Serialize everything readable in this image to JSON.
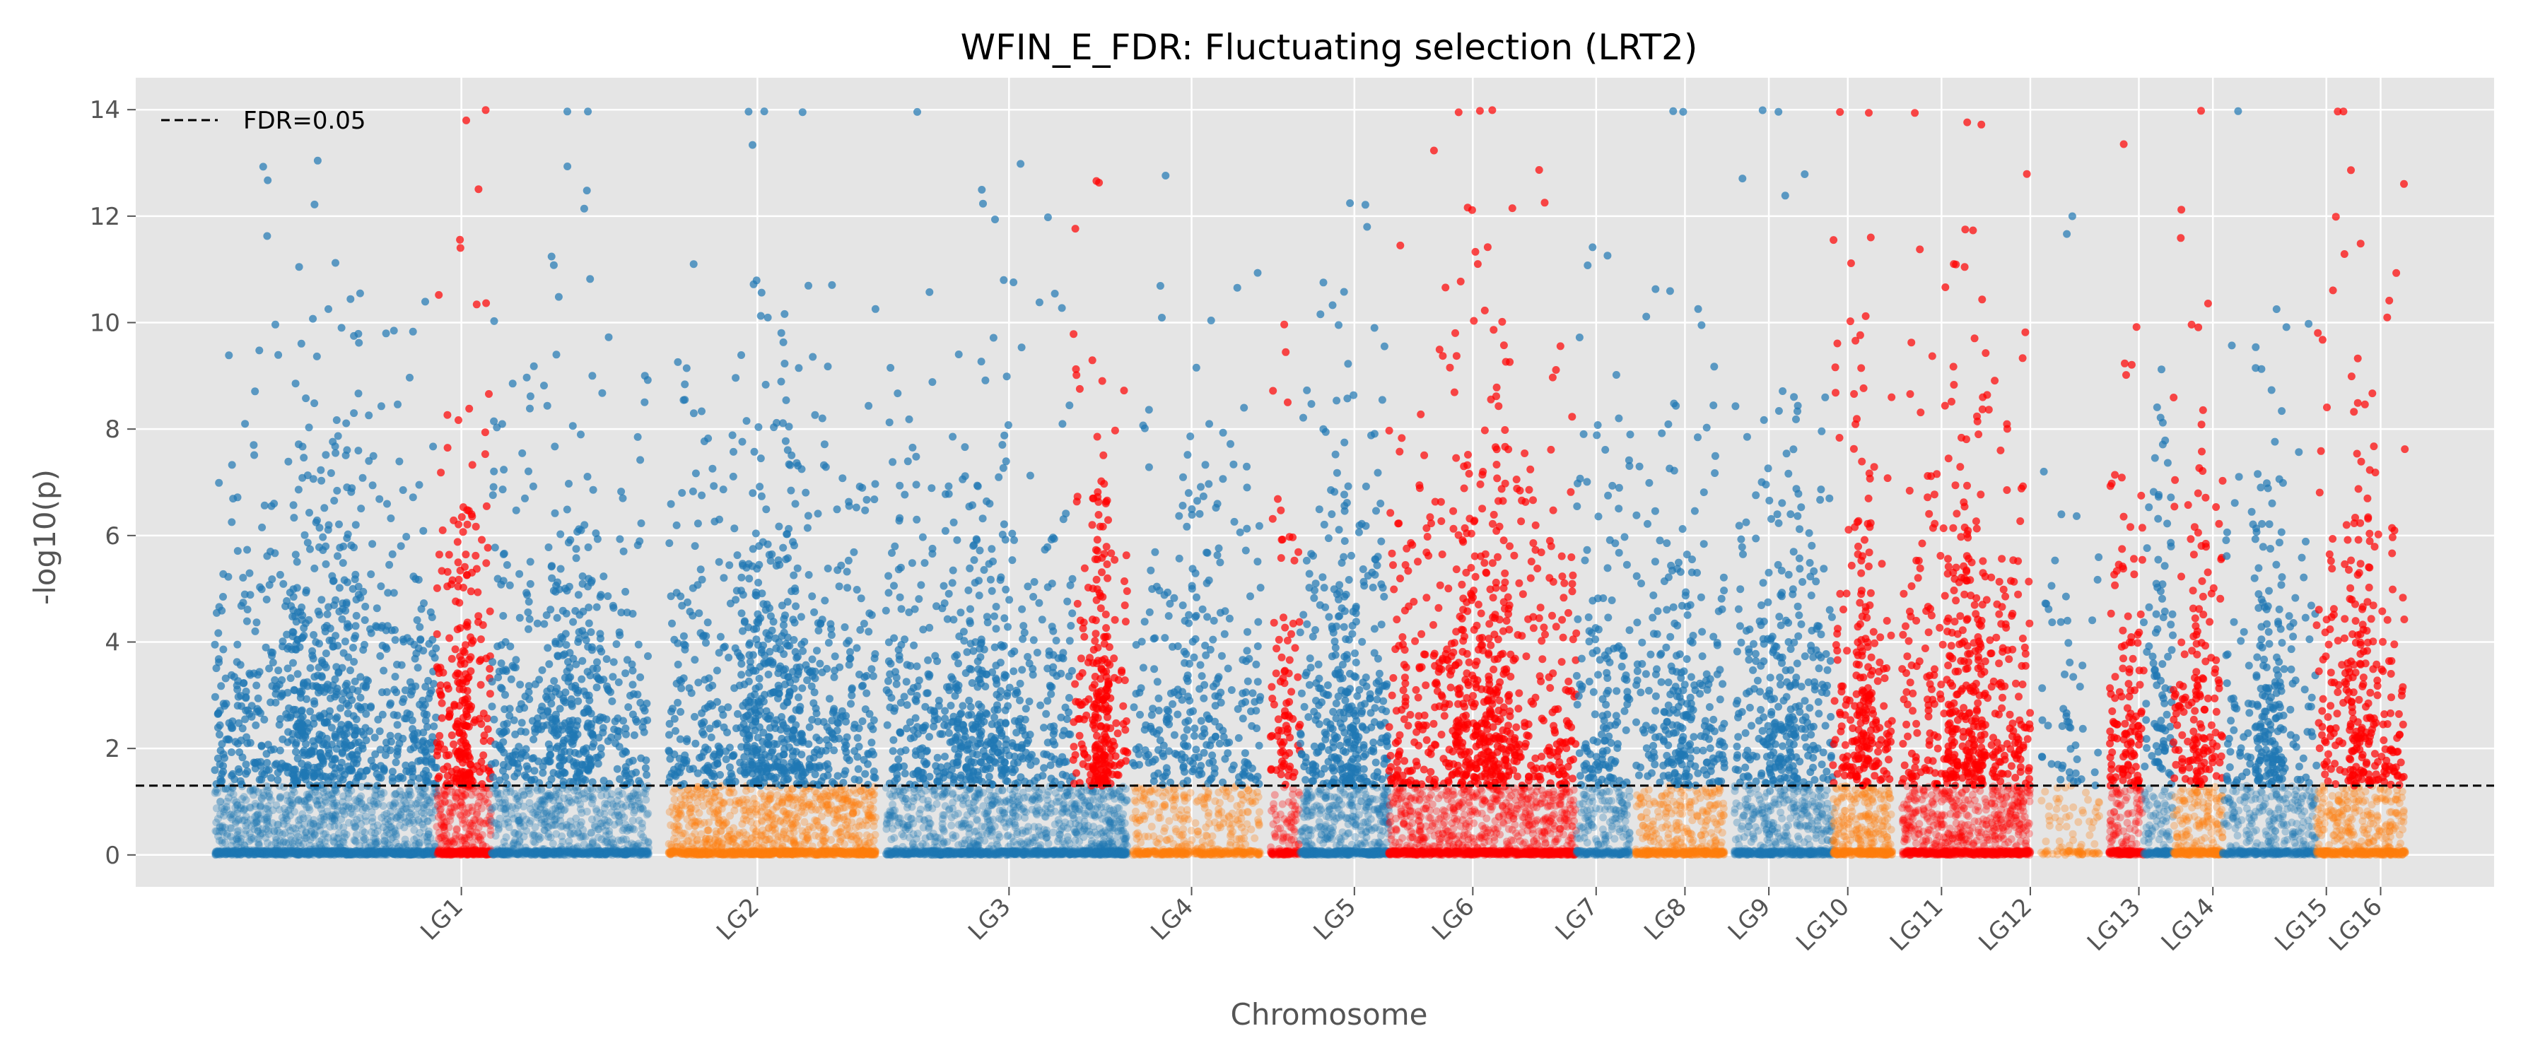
{
  "chart_data": {
    "type": "scatter",
    "title": "WFIN_E_FDR: Fluctuating selection (LRT2)",
    "xlabel": "Chromosome",
    "ylabel": "-log10(p)",
    "ylim": [
      -0.6,
      14.6
    ],
    "yticks": [
      0,
      2,
      4,
      6,
      8,
      10,
      12,
      14
    ],
    "grid": true,
    "legend": {
      "placement": "top-left",
      "entries": [
        {
          "label": "FDR=0.05",
          "style": "dashed",
          "color": "#000000"
        }
      ]
    },
    "threshold": {
      "y": 1.301,
      "label": "FDR=0.05"
    },
    "colors": {
      "background": "#e5e5e5",
      "grid": "#ffffff",
      "significant_blue": "#1f77b4",
      "significant_red": "#ff0000",
      "nonsignificant_orange": "#ff7f0e",
      "threshold_line": "#000000"
    },
    "chromosomes": [
      {
        "name": "LG1",
        "tick": 1.0,
        "start": 0.0,
        "end": 3.25
      },
      {
        "name": "LG2",
        "tick": 4.0,
        "start": 3.25,
        "end": 6.0
      },
      {
        "name": "LG3",
        "tick": 6.55,
        "start": 6.0,
        "end": 8.4
      },
      {
        "name": "LG4",
        "tick": 8.4,
        "start": 8.4,
        "end": 9.75
      },
      {
        "name": "LG5",
        "tick": 10.05,
        "start": 9.75,
        "end": 10.95
      },
      {
        "name": "LG6",
        "tick": 11.25,
        "start": 10.95,
        "end": 12.5
      },
      {
        "name": "LG7",
        "tick": 12.5,
        "start": 12.5,
        "end": 12.95
      },
      {
        "name": "LG8",
        "tick": 13.4,
        "start": 12.95,
        "end": 13.95
      },
      {
        "name": "LG9",
        "tick": 14.25,
        "start": 13.95,
        "end": 15.05
      },
      {
        "name": "LG10",
        "tick": 15.05,
        "start": 15.05,
        "end": 15.75
      },
      {
        "name": "LG11",
        "tick": 16.0,
        "start": 15.75,
        "end": 16.85
      },
      {
        "name": "LG12",
        "tick": 16.9,
        "start": 16.85,
        "end": 17.5
      },
      {
        "name": "LG13",
        "tick": 18.0,
        "start": 17.5,
        "end": 18.4
      },
      {
        "name": "LG14",
        "tick": 18.75,
        "start": 18.4,
        "end": 18.95
      },
      {
        "name": "LG15",
        "tick": 19.9,
        "start": 18.95,
        "end": 20.05
      },
      {
        "name": "LG16",
        "tick": 20.45,
        "start": 20.05,
        "end": 21.05
      }
    ],
    "segments": [
      {
        "start": -1.5,
        "end": 0.75,
        "sig": "blue",
        "ns": "blue",
        "density": 1.3,
        "peak": 0.25
      },
      {
        "start": 0.75,
        "end": 1.3,
        "sig": "red",
        "ns": "red",
        "density": 1.5,
        "peak": 0.35
      },
      {
        "start": 1.3,
        "end": 2.9,
        "sig": "blue",
        "ns": "blue",
        "density": 1.1,
        "peak": 0.25
      },
      {
        "start": 3.1,
        "end": 5.2,
        "sig": "blue",
        "ns": "orange",
        "density": 1.25,
        "peak": 0.3
      },
      {
        "start": 5.3,
        "end": 7.2,
        "sig": "blue",
        "ns": "blue",
        "density": 1.1,
        "peak": 0.25
      },
      {
        "start": 7.2,
        "end": 7.75,
        "sig": "red",
        "ns": "blue",
        "density": 1.6,
        "peak": 0.55
      },
      {
        "start": 7.8,
        "end": 9.1,
        "sig": "blue",
        "ns": "orange",
        "density": 0.75,
        "peak": 0.2
      },
      {
        "start": 9.2,
        "end": 9.5,
        "sig": "red",
        "ns": "red",
        "density": 0.9,
        "peak": 0.15
      },
      {
        "start": 9.5,
        "end": 10.4,
        "sig": "blue",
        "ns": "blue",
        "density": 1.35,
        "peak": 0.25
      },
      {
        "start": 10.4,
        "end": 12.3,
        "sig": "red",
        "ns": "red",
        "density": 1.25,
        "peak": 0.3
      },
      {
        "start": 12.3,
        "end": 12.85,
        "sig": "blue",
        "ns": "blue",
        "density": 0.9,
        "peak": 0.2
      },
      {
        "start": 12.9,
        "end": 13.8,
        "sig": "blue",
        "ns": "orange",
        "density": 1.0,
        "peak": 0.2
      },
      {
        "start": 13.9,
        "end": 14.9,
        "sig": "blue",
        "ns": "blue",
        "density": 1.1,
        "peak": 0.25
      },
      {
        "start": 14.9,
        "end": 15.5,
        "sig": "red",
        "ns": "orange",
        "density": 1.3,
        "peak": 0.3
      },
      {
        "start": 15.6,
        "end": 16.9,
        "sig": "red",
        "ns": "red",
        "density": 1.25,
        "peak": 0.3
      },
      {
        "start": 17.0,
        "end": 17.6,
        "sig": "blue",
        "ns": "orange",
        "density": 0.3,
        "peak": 0.1
      },
      {
        "start": 17.7,
        "end": 18.05,
        "sig": "red",
        "ns": "red",
        "density": 1.2,
        "peak": 0.2
      },
      {
        "start": 18.05,
        "end": 18.35,
        "sig": "blue",
        "ns": "blue",
        "density": 1.0,
        "peak": 0.2
      },
      {
        "start": 18.35,
        "end": 18.85,
        "sig": "red",
        "ns": "orange",
        "density": 1.1,
        "peak": 0.25
      },
      {
        "start": 18.85,
        "end": 19.8,
        "sig": "blue",
        "ns": "blue",
        "density": 0.9,
        "peak": 0.45
      },
      {
        "start": 19.8,
        "end": 20.7,
        "sig": "red",
        "ns": "orange",
        "density": 1.1,
        "peak": 0.3
      }
    ],
    "point_alpha": {
      "significant": 0.7,
      "nonsignificant": 0.3
    },
    "xlim": [
      -2.3,
      21.6
    ]
  }
}
